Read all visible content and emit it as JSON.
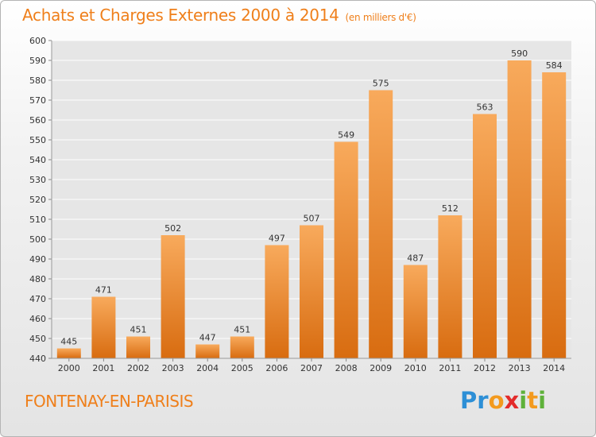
{
  "title": "Achats et Charges Externes 2000 à 2014",
  "unit_label": "(en milliers d'€)",
  "place": "FONTENAY-EN-PARISIS",
  "logo": {
    "text": "Proxiti",
    "letters": [
      {
        "ch": "P",
        "color": "#2d8fd6"
      },
      {
        "ch": "r",
        "color": "#2d8fd6"
      },
      {
        "ch": "o",
        "color": "#f39a1e"
      },
      {
        "ch": "x",
        "color": "#e32b2b"
      },
      {
        "ch": "i",
        "color": "#5fb13a"
      },
      {
        "ch": "t",
        "color": "#f39a1e"
      },
      {
        "ch": "i",
        "color": "#5fb13a"
      }
    ]
  },
  "colors": {
    "bar_top": "#f8aa5c",
    "bar_bottom": "#d86c10",
    "accent": "#ef7f1a",
    "grid": "#ffffff"
  },
  "chart_data": {
    "type": "bar",
    "title": "Achats et Charges Externes 2000 à 2014",
    "subtitle": "(en milliers d'€)",
    "categories": [
      "2000",
      "2001",
      "2002",
      "2003",
      "2004",
      "2005",
      "2006",
      "2007",
      "2008",
      "2009",
      "2010",
      "2011",
      "2012",
      "2013",
      "2014"
    ],
    "values": [
      445,
      471,
      451,
      502,
      447,
      451,
      497,
      507,
      549,
      575,
      487,
      512,
      563,
      590,
      584
    ],
    "ylim": [
      440,
      600
    ],
    "yticks": [
      440,
      450,
      460,
      470,
      480,
      490,
      500,
      510,
      520,
      530,
      540,
      550,
      560,
      570,
      580,
      590,
      600
    ],
    "grid": true,
    "xlabel": "",
    "ylabel": ""
  }
}
